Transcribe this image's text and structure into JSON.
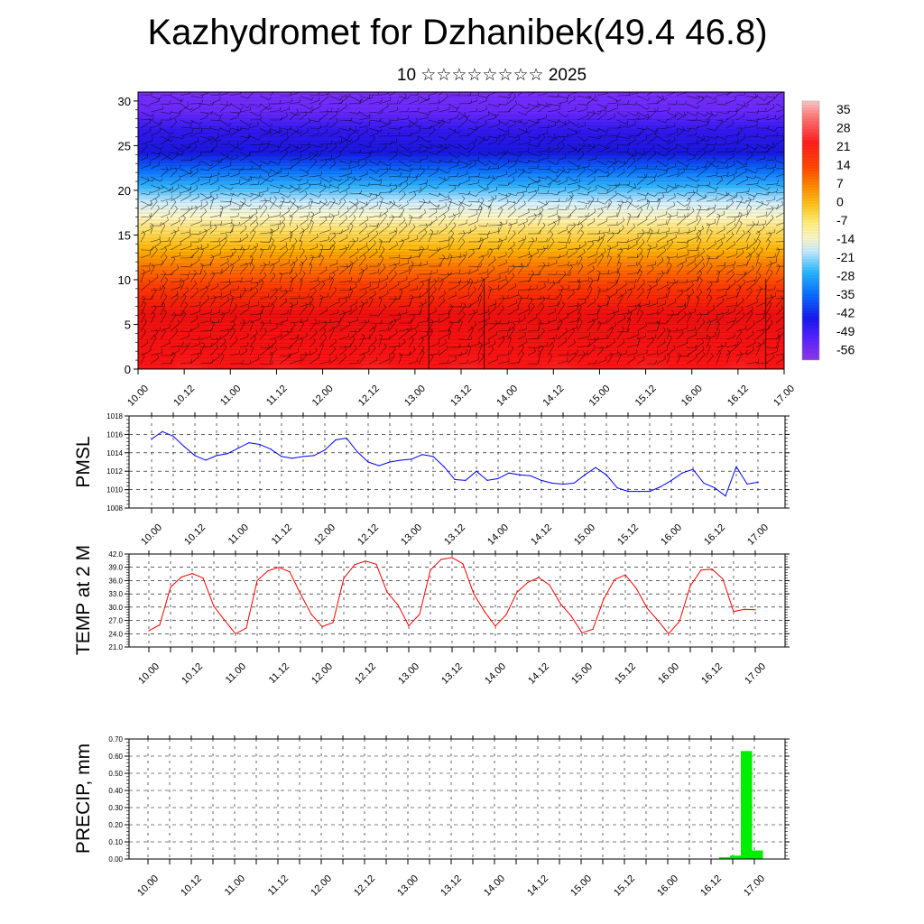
{
  "header": {
    "title": "Kazhydromet for Dzhanibek(49.4 46.8)",
    "subtitle": "10 ☆☆☆☆☆☆☆☆ 2025"
  },
  "colors": {
    "pmsl_line": "#0000ff",
    "temp_line": "#ff0000",
    "precip_bar": "#00ee00",
    "wind_barb": "#000000"
  },
  "time_ticks": [
    "10.00",
    "10.12",
    "11.00",
    "11.12",
    "12.00",
    "12.12",
    "13.00",
    "13.12",
    "14.00",
    "14.12",
    "15.00",
    "15.12",
    "16.00",
    "16.12",
    "17.00"
  ],
  "chart_data": [
    {
      "type": "heatmap",
      "name": "upper-air temperature cross-section with wind barbs",
      "x_ticks": [
        "10.00",
        "10.12",
        "11.00",
        "11.12",
        "12.00",
        "12.12",
        "13.00",
        "13.12",
        "14.00",
        "14.12",
        "15.00",
        "15.12",
        "16.00",
        "16.12",
        "17.00"
      ],
      "y_ticks": [
        0,
        5,
        10,
        15,
        20,
        25,
        30
      ],
      "ylim": [
        0,
        31
      ],
      "colorbar_labels": [
        "35",
        "28",
        "21",
        "14",
        "7",
        "0",
        "-7",
        "-14",
        "-21",
        "-28",
        "-35",
        "-42",
        "-49",
        "-56"
      ],
      "colorbar_range": [
        -60,
        38
      ],
      "overlay": "wind barbs"
    },
    {
      "type": "line",
      "ylabel": "PMSL",
      "ylim": [
        1008,
        1018
      ],
      "y_ticks": [
        "1018",
        "1016",
        "1014",
        "1012",
        "1010",
        "1008"
      ],
      "x_ticks": [
        "10.00",
        "10.12",
        "11.00",
        "11.12",
        "12.00",
        "12.12",
        "13.00",
        "13.12",
        "14.00",
        "14.12",
        "15.00",
        "15.12",
        "16.00",
        "16.12",
        "17.00"
      ],
      "x": [
        0,
        3,
        6,
        9,
        12,
        15,
        18,
        21,
        24,
        27,
        30,
        33,
        36,
        39,
        42,
        45,
        48,
        51,
        54,
        57,
        60,
        63,
        66,
        69,
        72,
        75,
        78,
        81,
        84,
        87,
        90,
        93,
        96,
        99,
        102,
        105,
        108,
        111,
        114,
        117,
        120,
        123,
        126,
        129,
        132,
        135,
        138,
        141,
        144,
        147,
        150,
        153,
        156,
        159,
        162,
        165,
        168
      ],
      "values": [
        1015.5,
        1016.3,
        1015.8,
        1014.7,
        1013.7,
        1013.2,
        1013.7,
        1013.9,
        1014.5,
        1015.1,
        1014.9,
        1014.4,
        1013.6,
        1013.4,
        1013.6,
        1013.7,
        1014.3,
        1015.4,
        1015.6,
        1014.1,
        1013.0,
        1012.6,
        1013.0,
        1013.2,
        1013.3,
        1013.8,
        1013.6,
        1012.5,
        1011.1,
        1011.0,
        1012.0,
        1011.0,
        1011.2,
        1011.8,
        1011.6,
        1011.5,
        1011.0,
        1010.7,
        1010.6,
        1010.7,
        1011.6,
        1012.4,
        1011.6,
        1010.2,
        1009.8,
        1009.8,
        1009.8,
        1010.3,
        1011.0,
        1011.8,
        1012.2,
        1010.7,
        1010.2,
        1009.3,
        1012.5,
        1010.6,
        1010.8
      ]
    },
    {
      "type": "line",
      "ylabel": "TEMP at 2 M",
      "ylim": [
        21.0,
        42.0
      ],
      "y_ticks": [
        "42.0",
        "39.0",
        "36.0",
        "33.0",
        "30.0",
        "27.0",
        "24.0",
        "21.0"
      ],
      "x_ticks": [
        "10.00",
        "10.12",
        "11.00",
        "11.12",
        "12.00",
        "12.12",
        "13.00",
        "13.12",
        "14.00",
        "14.12",
        "15.00",
        "15.12",
        "16.00",
        "16.12",
        "17.00"
      ],
      "x": [
        0,
        3,
        6,
        9,
        12,
        15,
        18,
        21,
        24,
        27,
        30,
        33,
        36,
        39,
        42,
        45,
        48,
        51,
        54,
        57,
        60,
        63,
        66,
        69,
        72,
        75,
        78,
        81,
        84,
        87,
        90,
        93,
        96,
        99,
        102,
        105,
        108,
        111,
        114,
        117,
        120,
        123,
        126,
        129,
        132,
        135,
        138,
        141,
        144,
        147,
        150,
        153,
        156,
        159,
        162,
        165,
        168
      ],
      "values": [
        24.7,
        26.0,
        34.5,
        36.8,
        37.6,
        36.6,
        30.2,
        27.0,
        24.0,
        25.3,
        36.0,
        38.2,
        39.0,
        38.0,
        33.0,
        28.4,
        25.6,
        26.5,
        36.5,
        39.6,
        40.4,
        39.7,
        33.4,
        30.5,
        25.8,
        28.4,
        38.4,
        40.8,
        41.2,
        39.8,
        33.0,
        29.0,
        25.7,
        28.3,
        33.4,
        35.6,
        36.7,
        35.0,
        30.8,
        28.0,
        24.2,
        25.0,
        31.8,
        36.2,
        37.3,
        34.3,
        29.8,
        27.0,
        24.0,
        26.8,
        34.8,
        38.4,
        38.6,
        36.4,
        29.0,
        29.5,
        29.4
      ]
    },
    {
      "type": "bar",
      "ylabel": "PRECIP, mm",
      "ylim": [
        0,
        0.7
      ],
      "y_ticks": [
        "0.70",
        "0.60",
        "0.50",
        "0.40",
        "0.30",
        "0.20",
        "0.10",
        "0.00"
      ],
      "x_ticks": [
        "10.00",
        "10.12",
        "11.00",
        "11.12",
        "12.00",
        "12.12",
        "13.00",
        "13.12",
        "14.00",
        "14.12",
        "15.00",
        "15.12",
        "16.00",
        "16.12",
        "17.00"
      ],
      "x": [
        159,
        162,
        165,
        168
      ],
      "values": [
        0.01,
        0.02,
        0.63,
        0.05
      ]
    }
  ]
}
